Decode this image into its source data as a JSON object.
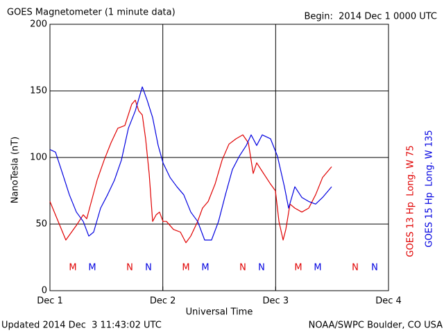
{
  "chart_data": {
    "type": "line",
    "title": "GOES Magnetometer (1 minute data)",
    "subtitle": "Begin:  2014 Dec 1 0000 UTC",
    "xlabel": "Universal Time",
    "ylabel": "NanoTesla (nT)",
    "footer_left": "Updated 2014 Dec  3 11:43:02 UTC",
    "footer_right": "NOAA/SWPC Boulder, CO USA",
    "xlim": [
      0,
      3
    ],
    "xticks": [
      {
        "value": 0,
        "label": "Dec 1"
      },
      {
        "value": 1,
        "label": "Dec 2"
      },
      {
        "value": 2,
        "label": "Dec 3"
      },
      {
        "value": 3,
        "label": "Dec 4"
      }
    ],
    "ylim": [
      0,
      200
    ],
    "yticks": [
      0,
      50,
      100,
      150,
      200
    ],
    "grid": true,
    "series": [
      {
        "name": "GOES 13 Hp  Long. W 75",
        "color": "#e00000",
        "x": [
          0,
          0.141,
          0.234,
          0.295,
          0.326,
          0.418,
          0.48,
          0.541,
          0.602,
          0.664,
          0.725,
          0.756,
          0.787,
          0.818,
          0.848,
          0.879,
          0.91,
          0.941,
          0.971,
          1.002,
          1.033,
          1.094,
          1.156,
          1.205,
          1.248,
          1.309,
          1.352,
          1.402,
          1.463,
          1.525,
          1.586,
          1.648,
          1.709,
          1.758,
          1.801,
          1.832,
          1.893,
          1.955,
          1.998,
          2.029,
          2.066,
          2.09,
          2.127,
          2.17,
          2.232,
          2.293,
          2.354,
          2.416,
          2.496
        ],
        "values": [
          67,
          38,
          49,
          57,
          54,
          83,
          98,
          111,
          122,
          124,
          140,
          143,
          135,
          132,
          114,
          88,
          52,
          57,
          59,
          52,
          52,
          46,
          44,
          36,
          41,
          52,
          62,
          67,
          80,
          98,
          110,
          114,
          117,
          111,
          88,
          96,
          88,
          80,
          75,
          52,
          38,
          46,
          65,
          62,
          59,
          62,
          72,
          85,
          93
        ]
      },
      {
        "name": "GOES 15 Hp  Long. W 135",
        "color": "#0000e0",
        "x": [
          0,
          0.049,
          0.111,
          0.172,
          0.234,
          0.295,
          0.344,
          0.387,
          0.449,
          0.51,
          0.572,
          0.633,
          0.695,
          0.756,
          0.818,
          0.861,
          0.91,
          0.959,
          1.002,
          1.064,
          1.125,
          1.186,
          1.248,
          1.309,
          1.371,
          1.432,
          1.494,
          1.555,
          1.617,
          1.678,
          1.74,
          1.783,
          1.832,
          1.881,
          1.955,
          2.016,
          2.078,
          2.115,
          2.17,
          2.232,
          2.293,
          2.354,
          2.416,
          2.496
        ],
        "values": [
          106,
          104,
          88,
          72,
          59,
          52,
          41,
          44,
          62,
          72,
          83,
          98,
          122,
          135,
          153,
          143,
          130,
          109,
          96,
          85,
          78,
          72,
          59,
          52,
          38,
          38,
          52,
          72,
          91,
          101,
          109,
          117,
          109,
          117,
          114,
          101,
          78,
          62,
          78,
          70,
          67,
          65,
          70,
          78
        ]
      }
    ],
    "markers": [
      {
        "text": "M",
        "x": 0.203,
        "color": "#e00000"
      },
      {
        "text": "M",
        "x": 1.205,
        "color": "#e00000"
      },
      {
        "text": "M",
        "x": 2.201,
        "color": "#e00000"
      },
      {
        "text": "M",
        "x": 0.375,
        "color": "#0000e0"
      },
      {
        "text": "M",
        "x": 1.377,
        "color": "#0000e0"
      },
      {
        "text": "M",
        "x": 2.373,
        "color": "#0000e0"
      },
      {
        "text": "N",
        "x": 0.707,
        "color": "#e00000"
      },
      {
        "text": "N",
        "x": 1.709,
        "color": "#e00000"
      },
      {
        "text": "N",
        "x": 2.705,
        "color": "#e00000"
      },
      {
        "text": "N",
        "x": 0.873,
        "color": "#0000e0"
      },
      {
        "text": "N",
        "x": 1.875,
        "color": "#0000e0"
      },
      {
        "text": "N",
        "x": 2.877,
        "color": "#0000e0"
      }
    ]
  }
}
